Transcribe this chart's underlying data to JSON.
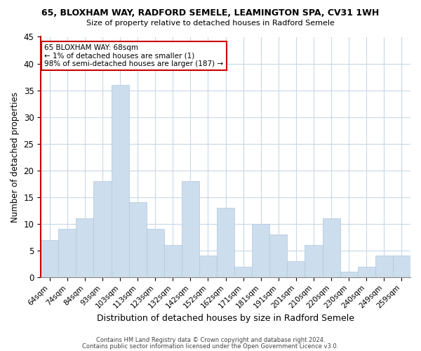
{
  "title1": "65, BLOXHAM WAY, RADFORD SEMELE, LEAMINGTON SPA, CV31 1WH",
  "title2": "Size of property relative to detached houses in Radford Semele",
  "xlabel": "Distribution of detached houses by size in Radford Semele",
  "ylabel": "Number of detached properties",
  "bar_labels": [
    "64sqm",
    "74sqm",
    "84sqm",
    "93sqm",
    "103sqm",
    "113sqm",
    "123sqm",
    "132sqm",
    "142sqm",
    "152sqm",
    "162sqm",
    "171sqm",
    "181sqm",
    "191sqm",
    "201sqm",
    "210sqm",
    "220sqm",
    "230sqm",
    "240sqm",
    "249sqm",
    "259sqm"
  ],
  "bar_values": [
    7,
    9,
    11,
    18,
    36,
    14,
    9,
    6,
    18,
    4,
    13,
    2,
    10,
    8,
    3,
    6,
    11,
    1,
    2,
    4,
    4
  ],
  "bar_color": "#ccdded",
  "bar_edge_color": "#aec8de",
  "ylim": [
    0,
    45
  ],
  "yticks": [
    0,
    5,
    10,
    15,
    20,
    25,
    30,
    35,
    40,
    45
  ],
  "annotation_title": "65 BLOXHAM WAY: 68sqm",
  "annotation_line1": "← 1% of detached houses are smaller (1)",
  "annotation_line2": "98% of semi-detached houses are larger (187) →",
  "annotation_box_color": "#ffffff",
  "annotation_box_edge": "#cc0000",
  "footer1": "Contains HM Land Registry data © Crown copyright and database right 2024.",
  "footer2": "Contains public sector information licensed under the Open Government Licence v3.0.",
  "bg_color": "#ffffff",
  "grid_color": "#c8d8e8",
  "left_spine_color": "#cc0000"
}
